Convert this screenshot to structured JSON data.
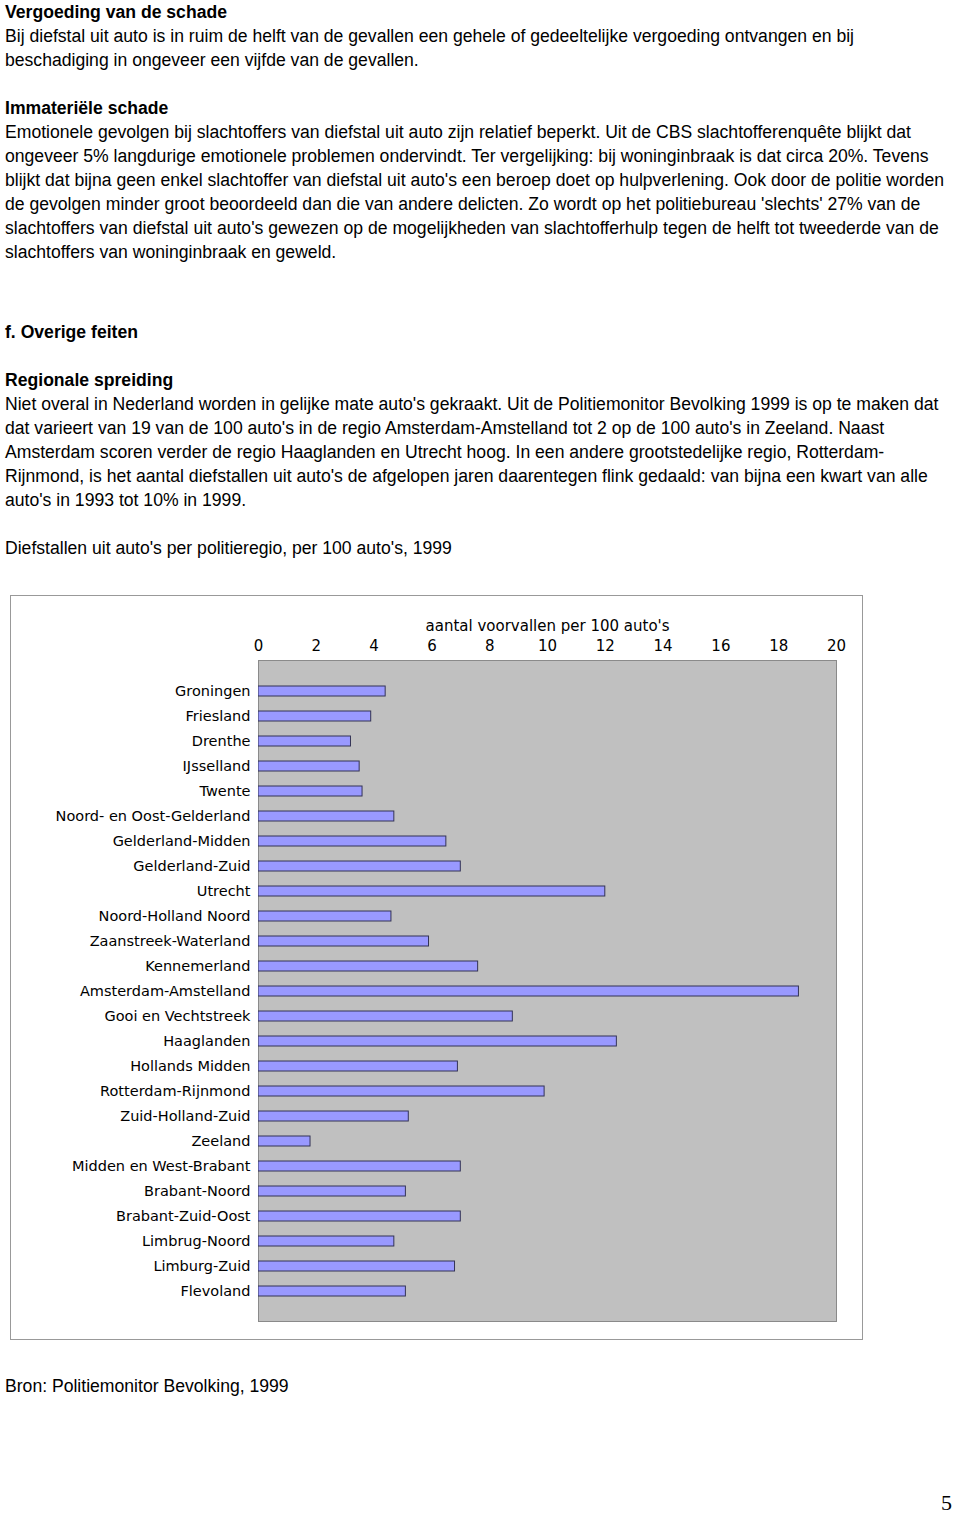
{
  "document": {
    "sections": [
      {
        "heading": "Vergoeding van de schade",
        "paragraphs": [
          "Bij diefstal uit auto is in ruim de helft van de gevallen een gehele of gedeeltelijke vergoeding ontvangen en bij beschadiging in ongeveer een vijfde van de gevallen."
        ]
      },
      {
        "heading": "Immateriële schade",
        "paragraphs": [
          "Emotionele gevolgen bij slachtoffers van diefstal uit auto zijn relatief beperkt. Uit de CBS slachtofferenquête blijkt dat ongeveer 5% langdurige emotionele problemen ondervindt. Ter vergelijking: bij woninginbraak is dat circa 20%. Tevens blijkt dat bijna geen enkel slachtoffer van diefstal uit auto's een beroep doet op hulpverlening. Ook door de politie worden de gevolgen minder groot beoordeeld dan die van andere delicten. Zo wordt op het politiebureau 'slechts' 27% van de slachtoffers van diefstal uit auto's gewezen op de mogelijkheden van slachtofferhulp tegen de helft tot tweederde van de slachtoffers van woninginbraak en geweld."
        ]
      },
      {
        "heading": "f. Overige feiten",
        "paragraphs": []
      },
      {
        "heading": "Regionale spreiding",
        "paragraphs": [
          "Niet overal in Nederland worden in gelijke mate auto's gekraakt. Uit de Politiemonitor Bevolking 1999 is op te maken dat dat varieert van 19 van de 100 auto's in de regio Amsterdam-Amstelland tot 2 op de 100 auto's in Zeeland. Naast Amsterdam scoren verder de regio Haaglanden en Utrecht hoog. In een andere grootstedelijke regio, Rotterdam-Rijnmond, is het aantal diefstallen uit auto's de afgelopen jaren daarentegen flink gedaald: van bijna een kwart van alle auto's in 1993 tot 10% in 1999."
        ]
      }
    ],
    "source": "Bron: Politiemonitor Bevolking, 1999",
    "page_number": "5"
  },
  "chart_data": {
    "type": "bar",
    "orientation": "horizontal",
    "title": "Diefstallen uit auto's per politieregio, per 100 auto's, 1999",
    "x_label": "aantal voorvallen per 100 auto's",
    "categories": [
      "Groningen",
      "Friesland",
      "Drenthe",
      "IJsselland",
      "Twente",
      "Noord- en Oost-Gelderland",
      "Gelderland-Midden",
      "Gelderland-Zuid",
      "Utrecht",
      "Noord-Holland Noord",
      "Zaanstreek-Waterland",
      "Kennemerland",
      "Amsterdam-Amstelland",
      "Gooi en Vechtstreek",
      "Haaglanden",
      "Hollands Midden",
      "Rotterdam-Rijnmond",
      "Zuid-Holland-Zuid",
      "Zeeland",
      "Midden en West-Brabant",
      "Brabant-Noord",
      "Brabant-Zuid-Oost",
      "Limbrug-Noord",
      "Limburg-Zuid",
      "Flevoland"
    ],
    "values": [
      4.4,
      3.9,
      3.2,
      3.5,
      3.6,
      4.7,
      6.5,
      7.0,
      12.0,
      4.6,
      5.9,
      7.6,
      18.7,
      8.8,
      12.4,
      6.9,
      9.9,
      5.2,
      1.8,
      7.0,
      5.1,
      7.0,
      4.7,
      6.8,
      5.1
    ],
    "color": "#9999ff",
    "xlim": [
      0,
      20
    ],
    "xticks": [
      0,
      2,
      4,
      6,
      8,
      10,
      12,
      14,
      16,
      18,
      20
    ],
    "grid": false
  }
}
